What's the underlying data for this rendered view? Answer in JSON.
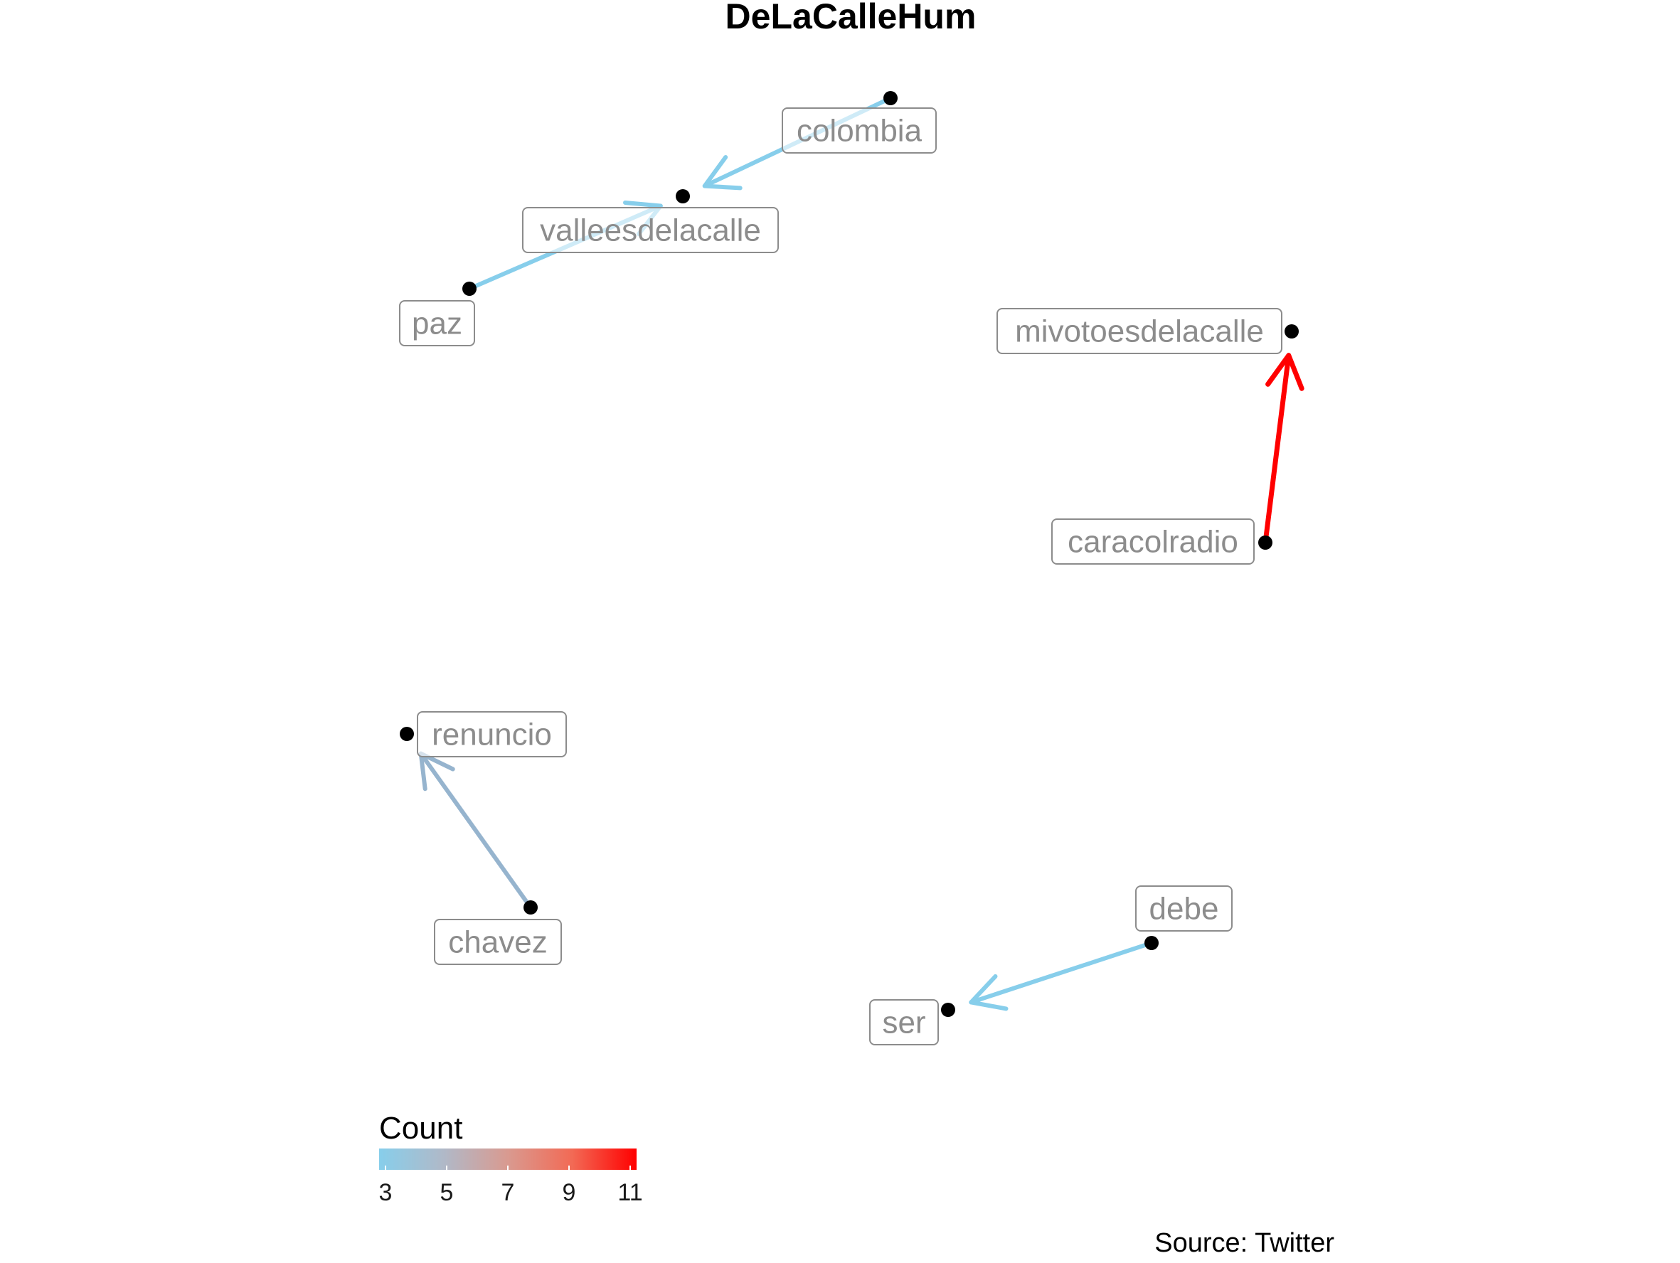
{
  "title": "DeLaCalleHum",
  "caption": "Source: Twitter",
  "colors": {
    "low": "#87CEEB",
    "high": "#FF0000",
    "node": "#000000",
    "label_text": "#8c8c8c"
  },
  "legend": {
    "title": "Count",
    "min": 3,
    "max": 11,
    "ticks": [
      "3",
      "5",
      "7",
      "9",
      "11"
    ]
  },
  "nodes": [
    {
      "id": "colombia",
      "label": "colombia"
    },
    {
      "id": "valleesdelacalle",
      "label": "valleesdelacalle"
    },
    {
      "id": "paz",
      "label": "paz"
    },
    {
      "id": "mivotoesdelacalle",
      "label": "mivotoesdelacalle"
    },
    {
      "id": "caracolradio",
      "label": "caracolradio"
    },
    {
      "id": "renuncio",
      "label": "renuncio"
    },
    {
      "id": "chavez",
      "label": "chavez"
    },
    {
      "id": "debe",
      "label": "debe"
    },
    {
      "id": "ser",
      "label": "ser"
    }
  ],
  "edges": [
    {
      "from": "colombia",
      "to": "valleesdelacalle",
      "count": 3
    },
    {
      "from": "paz",
      "to": "valleesdelacalle",
      "count": 3
    },
    {
      "from": "caracolradio",
      "to": "mivotoesdelacalle",
      "count": 11
    },
    {
      "from": "chavez",
      "to": "renuncio",
      "count": 4
    },
    {
      "from": "debe",
      "to": "ser",
      "count": 3
    }
  ]
}
